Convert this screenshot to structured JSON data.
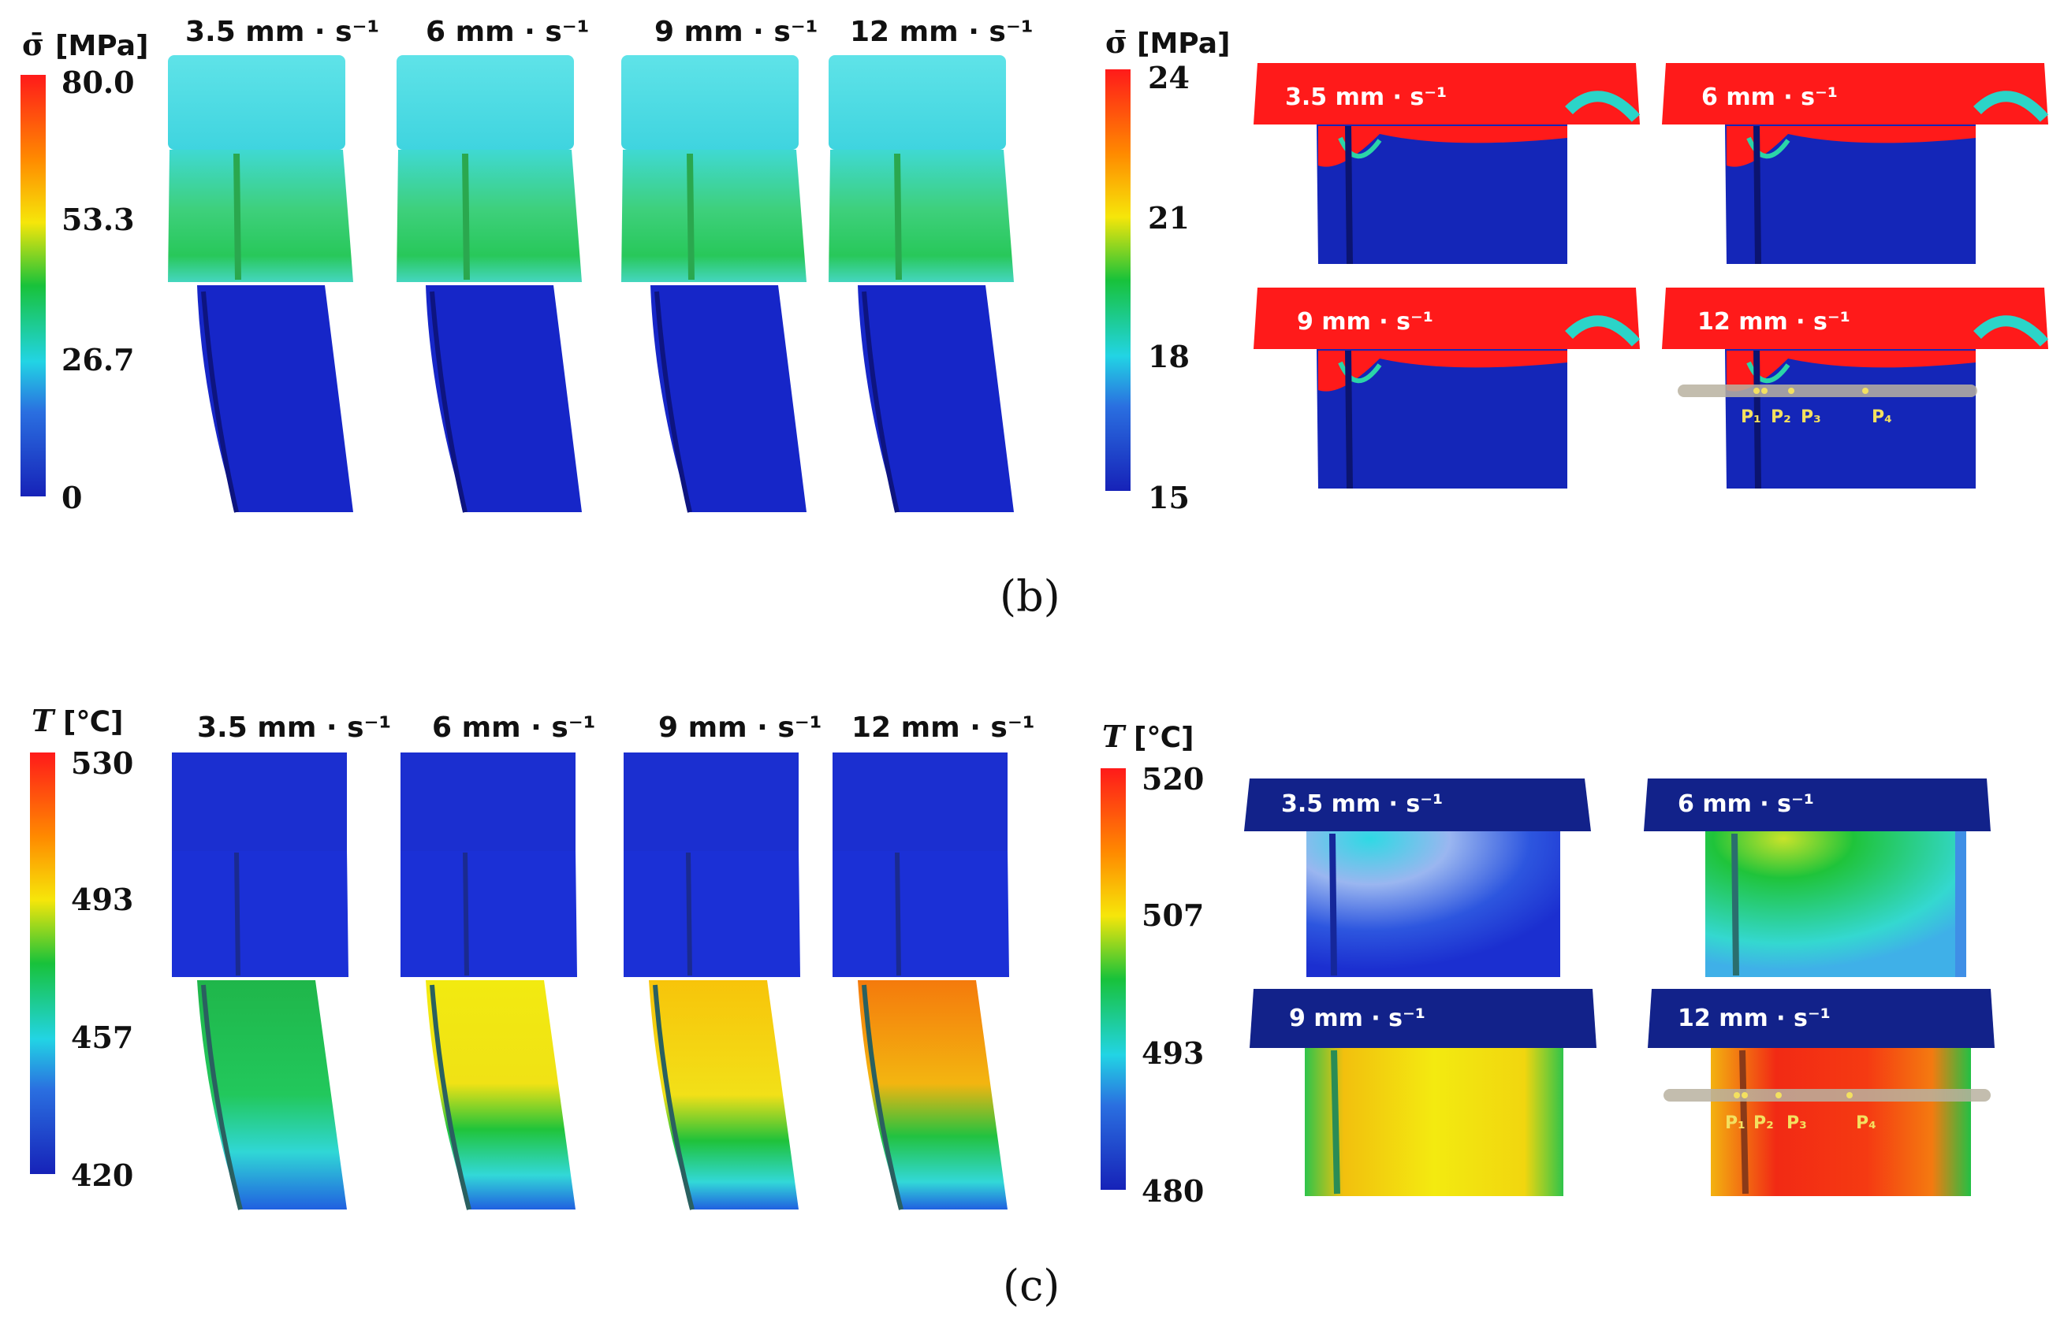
{
  "panel_b": {
    "caption": "(b)",
    "left_legend": {
      "symbol": "σ̄",
      "unit": "[MPa]",
      "ticks": [
        "80.0",
        "53.3",
        "26.7",
        "0"
      ]
    },
    "right_legend": {
      "symbol": "σ̄",
      "unit": "[MPa]",
      "ticks": [
        "24",
        "21",
        "18",
        "15"
      ]
    },
    "speeds": [
      "3.5 mm · s⁻¹",
      "6 mm · s⁻¹",
      "9 mm · s⁻¹",
      "12 mm · s⁻¹"
    ],
    "probe_points": [
      "P₁",
      "P₂",
      "P₃",
      "P₄"
    ]
  },
  "panel_c": {
    "caption": "(c)",
    "left_legend": {
      "symbol": "T",
      "unit": "[℃]",
      "ticks": [
        "530",
        "493",
        "457",
        "420"
      ]
    },
    "right_legend": {
      "symbol": "T",
      "unit": "[℃]",
      "ticks": [
        "520",
        "507",
        "493",
        "480"
      ]
    },
    "speeds": [
      "3.5 mm · s⁻¹",
      "6 mm · s⁻¹",
      "9 mm · s⁻¹",
      "12 mm · s⁻¹"
    ],
    "probe_points": [
      "P₁",
      "P₂",
      "P₃",
      "P₄"
    ]
  },
  "colors": {
    "red": "#ff1a1a",
    "yellow": "#f6e60a",
    "green": "#18c23a",
    "cyan": "#22d4e4",
    "blue": "#1a2cd4",
    "navy": "#0f1f86"
  }
}
